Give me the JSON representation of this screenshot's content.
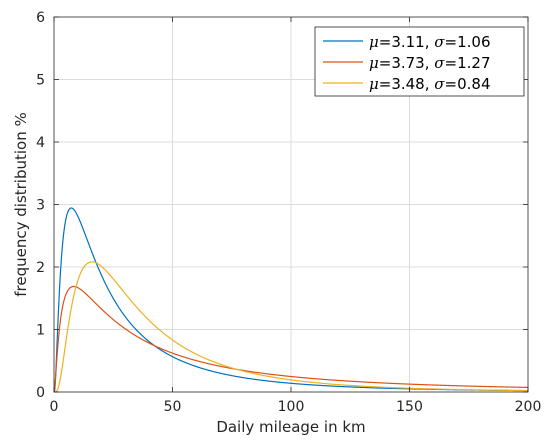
{
  "chart_data": {
    "type": "line",
    "title": "",
    "xlabel": "Daily mileage in km",
    "ylabel": "frequency distribution %",
    "xlim": [
      0,
      200
    ],
    "ylim": [
      0,
      6
    ],
    "xticks": [
      0,
      50,
      100,
      150,
      200
    ],
    "yticks": [
      0,
      1,
      2,
      3,
      4,
      5,
      6
    ],
    "xtick_labels": [
      "0",
      "50",
      "100",
      "150",
      "200"
    ],
    "ytick_labels": [
      "0",
      "1",
      "2",
      "3",
      "4",
      "5",
      "6"
    ],
    "grid": true,
    "legend_position": "top-right",
    "series": [
      {
        "legend": {
          "mu_sym": "μ",
          "mu_val": "=3.11, ",
          "sigma_sym": "σ",
          "sigma_val": "=1.06"
        },
        "mu": 3.11,
        "sigma": 1.06,
        "color": "#0072BD"
      },
      {
        "legend": {
          "mu_sym": "μ",
          "mu_val": "=3.73, ",
          "sigma_sym": "σ",
          "sigma_val": "=1.27"
        },
        "mu": 3.73,
        "sigma": 1.27,
        "color": "#D95319"
      },
      {
        "legend": {
          "mu_sym": "μ",
          "mu_val": "=3.48, ",
          "sigma_sym": "σ",
          "sigma_val": "=0.84"
        },
        "mu": 3.48,
        "sigma": 0.84,
        "color": "#EDB120"
      }
    ]
  }
}
